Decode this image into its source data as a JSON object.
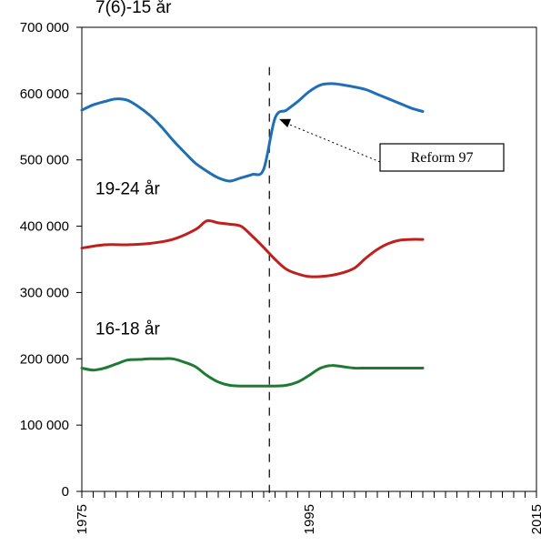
{
  "chart_data": {
    "type": "line",
    "title": "",
    "xlabel": "",
    "ylabel": "",
    "xlim": [
      1975,
      2015
    ],
    "ylim": [
      0,
      700000
    ],
    "yticks": [
      0,
      100000,
      200000,
      300000,
      400000,
      500000,
      600000,
      700000
    ],
    "ytick_labels": [
      "0",
      "100 000",
      "200 000",
      "300 000",
      "400 000",
      "500 000",
      "600 000",
      "700 000"
    ],
    "xtick_labels": [
      {
        "year": 1975,
        "label": "1975"
      },
      {
        "year": 1995,
        "label": "1995"
      },
      {
        "year": 2015,
        "label": "2015"
      }
    ],
    "grid": false,
    "series": [
      {
        "name": "7(6)-15 år",
        "color": "#1f6fb6",
        "points": [
          [
            1975,
            575000
          ],
          [
            1976,
            583000
          ],
          [
            1977,
            588000
          ],
          [
            1978,
            592000
          ],
          [
            1979,
            590000
          ],
          [
            1980,
            580000
          ],
          [
            1981,
            567000
          ],
          [
            1982,
            550000
          ],
          [
            1983,
            530000
          ],
          [
            1984,
            512000
          ],
          [
            1985,
            495000
          ],
          [
            1986,
            483000
          ],
          [
            1987,
            473000
          ],
          [
            1988,
            468000
          ],
          [
            1989,
            473000
          ],
          [
            1990,
            478000
          ],
          [
            1991,
            486000
          ],
          [
            1992,
            563000
          ],
          [
            1993,
            575000
          ],
          [
            1994,
            588000
          ],
          [
            1995,
            603000
          ],
          [
            1996,
            613000
          ],
          [
            1997,
            615000
          ],
          [
            1998,
            613000
          ],
          [
            1999,
            610000
          ],
          [
            2000,
            606000
          ],
          [
            2001,
            599000
          ],
          [
            2002,
            592000
          ],
          [
            2003,
            585000
          ],
          [
            2004,
            578000
          ],
          [
            2005,
            573000
          ]
        ]
      },
      {
        "name": "19-24 år",
        "color": "#c0201d",
        "points": [
          [
            1975,
            367000
          ],
          [
            1977,
            372000
          ],
          [
            1979,
            372000
          ],
          [
            1981,
            374000
          ],
          [
            1983,
            380000
          ],
          [
            1985,
            395000
          ],
          [
            1986,
            408000
          ],
          [
            1987,
            405000
          ],
          [
            1988,
            403000
          ],
          [
            1989,
            400000
          ],
          [
            1990,
            385000
          ],
          [
            1991,
            368000
          ],
          [
            1992,
            350000
          ],
          [
            1993,
            335000
          ],
          [
            1994,
            328000
          ],
          [
            1995,
            324000
          ],
          [
            1996,
            324000
          ],
          [
            1997,
            326000
          ],
          [
            1998,
            330000
          ],
          [
            1999,
            337000
          ],
          [
            2000,
            352000
          ],
          [
            2001,
            365000
          ],
          [
            2002,
            374000
          ],
          [
            2003,
            379000
          ],
          [
            2004,
            380000
          ],
          [
            2005,
            380000
          ]
        ]
      },
      {
        "name": "16-18 år",
        "color": "#1f7a32",
        "points": [
          [
            1975,
            186000
          ],
          [
            1976,
            183000
          ],
          [
            1977,
            186000
          ],
          [
            1978,
            192000
          ],
          [
            1979,
            198000
          ],
          [
            1980,
            199000
          ],
          [
            1981,
            200000
          ],
          [
            1982,
            200000
          ],
          [
            1983,
            200000
          ],
          [
            1984,
            195000
          ],
          [
            1985,
            188000
          ],
          [
            1986,
            175000
          ],
          [
            1987,
            165000
          ],
          [
            1988,
            160000
          ],
          [
            1989,
            159000
          ],
          [
            1990,
            159000
          ],
          [
            1991,
            159000
          ],
          [
            1992,
            159000
          ],
          [
            1993,
            160000
          ],
          [
            1994,
            165000
          ],
          [
            1995,
            175000
          ],
          [
            1996,
            186000
          ],
          [
            1997,
            190000
          ],
          [
            1998,
            188000
          ],
          [
            1999,
            186000
          ],
          [
            2000,
            186000
          ],
          [
            2001,
            186000
          ],
          [
            2002,
            186000
          ],
          [
            2003,
            186000
          ],
          [
            2004,
            186000
          ],
          [
            2005,
            186000
          ]
        ]
      }
    ],
    "series_labels": [
      {
        "text": "7(6)-15 år",
        "x": 1976.2,
        "y": 722000
      },
      {
        "text": "19-24 år",
        "x": 1976.2,
        "y": 448000
      },
      {
        "text": "16-18 år",
        "x": 1976.2,
        "y": 237000
      }
    ],
    "reform_line": {
      "x": 1991.5
    },
    "annotation": {
      "text": "Reform 97",
      "arrow_to": [
        1992.2,
        563000
      ]
    }
  }
}
